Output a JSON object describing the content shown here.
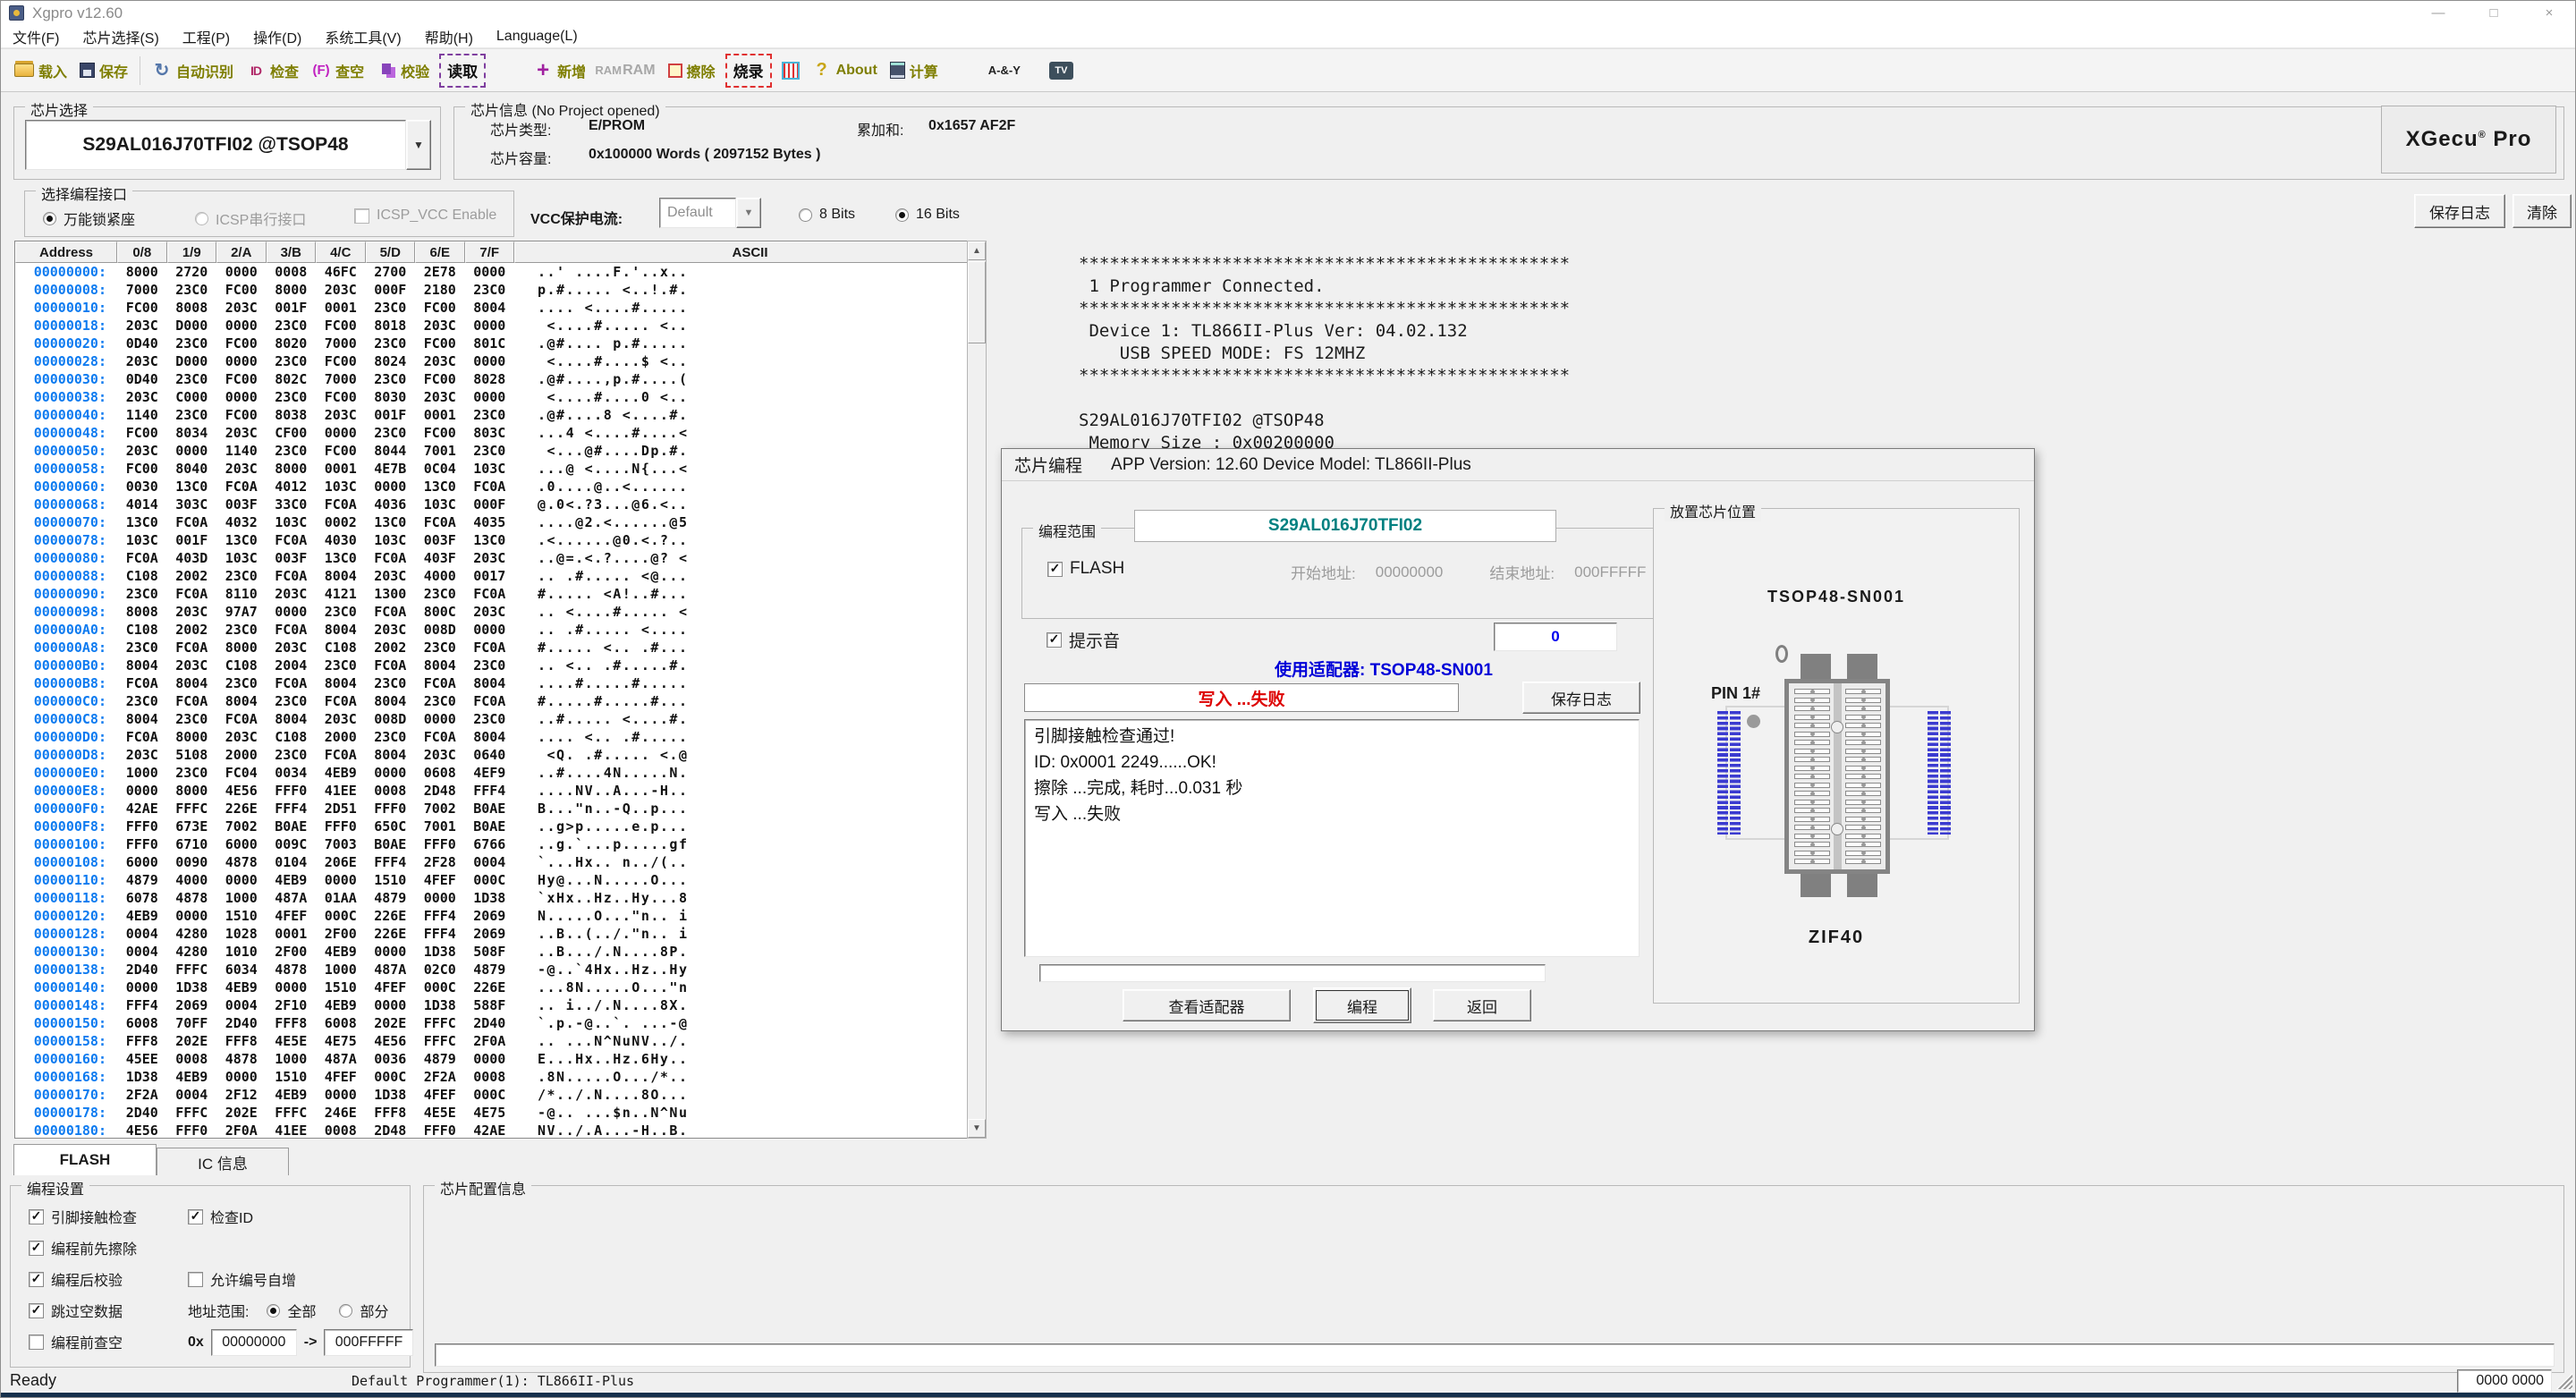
{
  "window": {
    "title": "Xgpro v12.60",
    "minimize": "—",
    "maximize": "□",
    "close": "×"
  },
  "menu": [
    "文件(F)",
    "芯片选择(S)",
    "工程(P)",
    "操作(D)",
    "系统工具(V)",
    "帮助(H)",
    "Language(L)"
  ],
  "toolbar": {
    "items": [
      {
        "name": "load",
        "label": "载入",
        "icon": "folder-open"
      },
      {
        "name": "save",
        "label": "保存",
        "icon": "floppy"
      },
      {
        "name": "sep"
      },
      {
        "name": "auto-detect",
        "label": "自动识别",
        "icon": "auto-detect",
        "glyph": "↻"
      },
      {
        "name": "check-id",
        "label": "检查",
        "icon": "id-badge",
        "glyph": "ID"
      },
      {
        "name": "blank-check",
        "label": "查空",
        "icon": "blank-f",
        "glyph": "(F)"
      },
      {
        "name": "verify",
        "label": "校验",
        "icon": "verify"
      },
      {
        "name": "read",
        "label": "读取",
        "boxed": "green"
      },
      {
        "name": "gap"
      },
      {
        "name": "add",
        "label": "新增",
        "icon": "plus",
        "glyph": "+"
      },
      {
        "name": "ram",
        "label": "RAM",
        "disabled": true,
        "icon": "ram-txt",
        "glyph": "RAM"
      },
      {
        "name": "erase",
        "label": "擦除",
        "icon": "erase"
      },
      {
        "name": "program",
        "label": "烧录",
        "boxed": "red"
      },
      {
        "name": "pin-test",
        "icon": "pin-grid"
      },
      {
        "name": "about",
        "label": "About",
        "icon": "question",
        "glyph": "?"
      },
      {
        "name": "calc",
        "label": "计算",
        "icon": "calculator"
      },
      {
        "name": "gap"
      },
      {
        "name": "logic",
        "icon": "logic-gate",
        "glyph": "A-&-Y"
      },
      {
        "name": "gap-sm"
      },
      {
        "name": "tv",
        "icon": "tv",
        "glyph": "TV"
      }
    ]
  },
  "chip_select": {
    "group": "芯片选择",
    "value": "S29AL016J70TFI02 @TSOP48"
  },
  "chip_info": {
    "group": "芯片信息 (No Project opened)",
    "type_label": "芯片类型:",
    "type_value": "E/PROM",
    "checksum_label": "累加和:",
    "checksum_value": "0x1657 AF2F",
    "capacity_label": "芯片容量:",
    "capacity_value": "0x100000 Words ( 2097152 Bytes )",
    "brand": "XGecu",
    "brand_sup": "®",
    "brand_suffix": "Pro"
  },
  "interface": {
    "group": "选择编程接口",
    "universal": "万能锁紧座",
    "icsp": "ICSP串行接口",
    "icsp_vcc": "ICSP_VCC Enable",
    "vcc_label": "VCC保护电流:",
    "vcc_value": "Default",
    "bits8": "8 Bits",
    "bits16": "16 Bits"
  },
  "top_buttons": {
    "save_log": "保存日志",
    "clear": "清除"
  },
  "hex": {
    "headers": [
      "Address",
      "0/8",
      "1/9",
      "2/A",
      "3/B",
      "4/C",
      "5/D",
      "6/E",
      "7/F",
      "ASCII"
    ],
    "rows": [
      [
        "00000000",
        "8000",
        "2720",
        "0000",
        "0008",
        "46FC",
        "2700",
        "2E78",
        "0000"
      ],
      [
        "00000008",
        "7000",
        "23C0",
        "FC00",
        "8000",
        "203C",
        "000F",
        "2180",
        "23C0"
      ],
      [
        "00000010",
        "FC00",
        "8008",
        "203C",
        "001F",
        "0001",
        "23C0",
        "FC00",
        "8004"
      ],
      [
        "00000018",
        "203C",
        "D000",
        "0000",
        "23C0",
        "FC00",
        "8018",
        "203C",
        "0000"
      ],
      [
        "00000020",
        "0D40",
        "23C0",
        "FC00",
        "8020",
        "7000",
        "23C0",
        "FC00",
        "801C"
      ],
      [
        "00000028",
        "203C",
        "D000",
        "0000",
        "23C0",
        "FC00",
        "8024",
        "203C",
        "0000"
      ],
      [
        "00000030",
        "0D40",
        "23C0",
        "FC00",
        "802C",
        "7000",
        "23C0",
        "FC00",
        "8028"
      ],
      [
        "00000038",
        "203C",
        "C000",
        "0000",
        "23C0",
        "FC00",
        "8030",
        "203C",
        "0000"
      ],
      [
        "00000040",
        "1140",
        "23C0",
        "FC00",
        "8038",
        "203C",
        "001F",
        "0001",
        "23C0"
      ],
      [
        "00000048",
        "FC00",
        "8034",
        "203C",
        "CF00",
        "0000",
        "23C0",
        "FC00",
        "803C"
      ],
      [
        "00000050",
        "203C",
        "0000",
        "1140",
        "23C0",
        "FC00",
        "8044",
        "7001",
        "23C0"
      ],
      [
        "00000058",
        "FC00",
        "8040",
        "203C",
        "8000",
        "0001",
        "4E7B",
        "0C04",
        "103C"
      ],
      [
        "00000060",
        "0030",
        "13C0",
        "FC0A",
        "4012",
        "103C",
        "0000",
        "13C0",
        "FC0A"
      ],
      [
        "00000068",
        "4014",
        "303C",
        "003F",
        "33C0",
        "FC0A",
        "4036",
        "103C",
        "000F"
      ],
      [
        "00000070",
        "13C0",
        "FC0A",
        "4032",
        "103C",
        "0002",
        "13C0",
        "FC0A",
        "4035"
      ],
      [
        "00000078",
        "103C",
        "001F",
        "13C0",
        "FC0A",
        "4030",
        "103C",
        "003F",
        "13C0"
      ],
      [
        "00000080",
        "FC0A",
        "403D",
        "103C",
        "003F",
        "13C0",
        "FC0A",
        "403F",
        "203C"
      ],
      [
        "00000088",
        "C108",
        "2002",
        "23C0",
        "FC0A",
        "8004",
        "203C",
        "4000",
        "0017"
      ],
      [
        "00000090",
        "23C0",
        "FC0A",
        "8110",
        "203C",
        "4121",
        "1300",
        "23C0",
        "FC0A"
      ],
      [
        "00000098",
        "8008",
        "203C",
        "97A7",
        "0000",
        "23C0",
        "FC0A",
        "800C",
        "203C"
      ],
      [
        "000000A0",
        "C108",
        "2002",
        "23C0",
        "FC0A",
        "8004",
        "203C",
        "008D",
        "0000"
      ],
      [
        "000000A8",
        "23C0",
        "FC0A",
        "8000",
        "203C",
        "C108",
        "2002",
        "23C0",
        "FC0A"
      ],
      [
        "000000B0",
        "8004",
        "203C",
        "C108",
        "2004",
        "23C0",
        "FC0A",
        "8004",
        "23C0"
      ],
      [
        "000000B8",
        "FC0A",
        "8004",
        "23C0",
        "FC0A",
        "8004",
        "23C0",
        "FC0A",
        "8004"
      ],
      [
        "000000C0",
        "23C0",
        "FC0A",
        "8004",
        "23C0",
        "FC0A",
        "8004",
        "23C0",
        "FC0A"
      ],
      [
        "000000C8",
        "8004",
        "23C0",
        "FC0A",
        "8004",
        "203C",
        "008D",
        "0000",
        "23C0"
      ],
      [
        "000000D0",
        "FC0A",
        "8000",
        "203C",
        "C108",
        "2000",
        "23C0",
        "FC0A",
        "8004"
      ],
      [
        "000000D8",
        "203C",
        "5108",
        "2000",
        "23C0",
        "FC0A",
        "8004",
        "203C",
        "0640"
      ],
      [
        "000000E0",
        "1000",
        "23C0",
        "FC04",
        "0034",
        "4EB9",
        "0000",
        "0608",
        "4EF9"
      ],
      [
        "000000E8",
        "0000",
        "8000",
        "4E56",
        "FFF0",
        "41EE",
        "0008",
        "2D48",
        "FFF4"
      ],
      [
        "000000F0",
        "42AE",
        "FFFC",
        "226E",
        "FFF4",
        "2D51",
        "FFF0",
        "7002",
        "B0AE"
      ],
      [
        "000000F8",
        "FFF0",
        "673E",
        "7002",
        "B0AE",
        "FFF0",
        "650C",
        "7001",
        "B0AE"
      ],
      [
        "00000100",
        "FFF0",
        "6710",
        "6000",
        "009C",
        "7003",
        "B0AE",
        "FFF0",
        "6766"
      ],
      [
        "00000108",
        "6000",
        "0090",
        "4878",
        "0104",
        "206E",
        "FFF4",
        "2F28",
        "0004"
      ],
      [
        "00000110",
        "4879",
        "4000",
        "0000",
        "4EB9",
        "0000",
        "1510",
        "4FEF",
        "000C"
      ],
      [
        "00000118",
        "6078",
        "4878",
        "1000",
        "487A",
        "01AA",
        "4879",
        "0000",
        "1D38"
      ],
      [
        "00000120",
        "4EB9",
        "0000",
        "1510",
        "4FEF",
        "000C",
        "226E",
        "FFF4",
        "2069"
      ],
      [
        "00000128",
        "0004",
        "4280",
        "1028",
        "0001",
        "2F00",
        "226E",
        "FFF4",
        "2069"
      ],
      [
        "00000130",
        "0004",
        "4280",
        "1010",
        "2F00",
        "4EB9",
        "0000",
        "1D38",
        "508F"
      ],
      [
        "00000138",
        "2D40",
        "FFFC",
        "6034",
        "4878",
        "1000",
        "487A",
        "02C0",
        "4879"
      ],
      [
        "00000140",
        "0000",
        "1D38",
        "4EB9",
        "0000",
        "1510",
        "4FEF",
        "000C",
        "226E"
      ],
      [
        "00000148",
        "FFF4",
        "2069",
        "0004",
        "2F10",
        "4EB9",
        "0000",
        "1D38",
        "588F"
      ],
      [
        "00000150",
        "6008",
        "70FF",
        "2D40",
        "FFF8",
        "6008",
        "202E",
        "FFFC",
        "2D40"
      ],
      [
        "00000158",
        "FFF8",
        "202E",
        "FFF8",
        "4E5E",
        "4E75",
        "4E56",
        "FFFC",
        "2F0A"
      ],
      [
        "00000160",
        "45EE",
        "0008",
        "4878",
        "1000",
        "487A",
        "0036",
        "4879",
        "0000"
      ],
      [
        "00000168",
        "1D38",
        "4EB9",
        "0000",
        "1510",
        "4FEF",
        "000C",
        "2F2A",
        "0008"
      ],
      [
        "00000170",
        "2F2A",
        "0004",
        "2F12",
        "4EB9",
        "0000",
        "1D38",
        "4FEF",
        "000C"
      ],
      [
        "00000178",
        "2D40",
        "FFFC",
        "202E",
        "FFFC",
        "246E",
        "FFF8",
        "4E5E",
        "4E75"
      ],
      [
        "00000180",
        "4E56",
        "FFF0",
        "2F0A",
        "41EE",
        "0008",
        "2D48",
        "FFF0",
        "42AE"
      ]
    ]
  },
  "terminal": {
    "lines": [
      "************************************************",
      " 1 Programmer Connected.",
      "************************************************",
      " Device 1: TL866II-Plus Ver: 04.02.132",
      "    USB SPEED MODE: FS 12MHZ",
      "************************************************",
      "",
      "S29AL016J70TFI02 @TSOP48",
      " Memory Size : 0x00200000"
    ]
  },
  "dialog": {
    "title": "芯片编程",
    "subtitle": "APP Version: 12.60 Device Model: TL866II-Plus",
    "range_group": "编程范围",
    "chip_tab": "S29AL016J70TFI02",
    "flash_label": "FLASH",
    "start_label": "开始地址:",
    "start_value": "00000000",
    "end_label": "结束地址:",
    "end_value": "000FFFFF",
    "beep_label": "提示音",
    "count_value": "0",
    "adapter_note": "使用适配器: TSOP48-SN001",
    "status_text": "写入 ...失败",
    "save_log": "保存日志",
    "log_lines": [
      "引脚接触检查通过!",
      "ID: 0x0001 2249......OK!",
      "擦除 ...完成, 耗时...0.031 秒",
      "写入 ...失败"
    ],
    "view_adapter": "查看适配器",
    "program": "编程",
    "back": "返回",
    "placement": {
      "group": "放置芯片位置",
      "adapter": "TSOP48-SN001",
      "pin1": "PIN 1#",
      "socket": "ZIF40"
    }
  },
  "tabs": [
    "FLASH",
    "IC 信息"
  ],
  "prog_settings": {
    "group": "编程设置",
    "col1": [
      {
        "label": "引脚接触检查",
        "checked": true
      },
      {
        "label": "编程前先擦除",
        "checked": true
      },
      {
        "label": "编程后校验",
        "checked": true
      },
      {
        "label": "跳过空数据",
        "checked": true
      },
      {
        "label": "编程前查空",
        "checked": false
      }
    ],
    "check_id": {
      "label": "检查ID",
      "checked": true
    },
    "auto_inc": {
      "label": "允许编号自增",
      "checked": false
    },
    "addr_range_label": "地址范围:",
    "all_label": "全部",
    "part_label": "部分",
    "prefix": "0x",
    "from": "00000000",
    "arrow": "->",
    "to": "000FFFFF"
  },
  "chip_config": {
    "group": "芯片配置信息"
  },
  "status": {
    "ready": "Ready",
    "programmer": "Default Programmer(1): TL866II-Plus",
    "counter": "0000 0000"
  },
  "colors": {
    "address": "#0e7bf0",
    "chip_tab": "#008080",
    "adapter_note": "#0000d8",
    "fail": "#dd0000",
    "counter": "#0000ee",
    "toolbar_label": "#7e7e00",
    "statusbar_strip": "#15304b"
  }
}
